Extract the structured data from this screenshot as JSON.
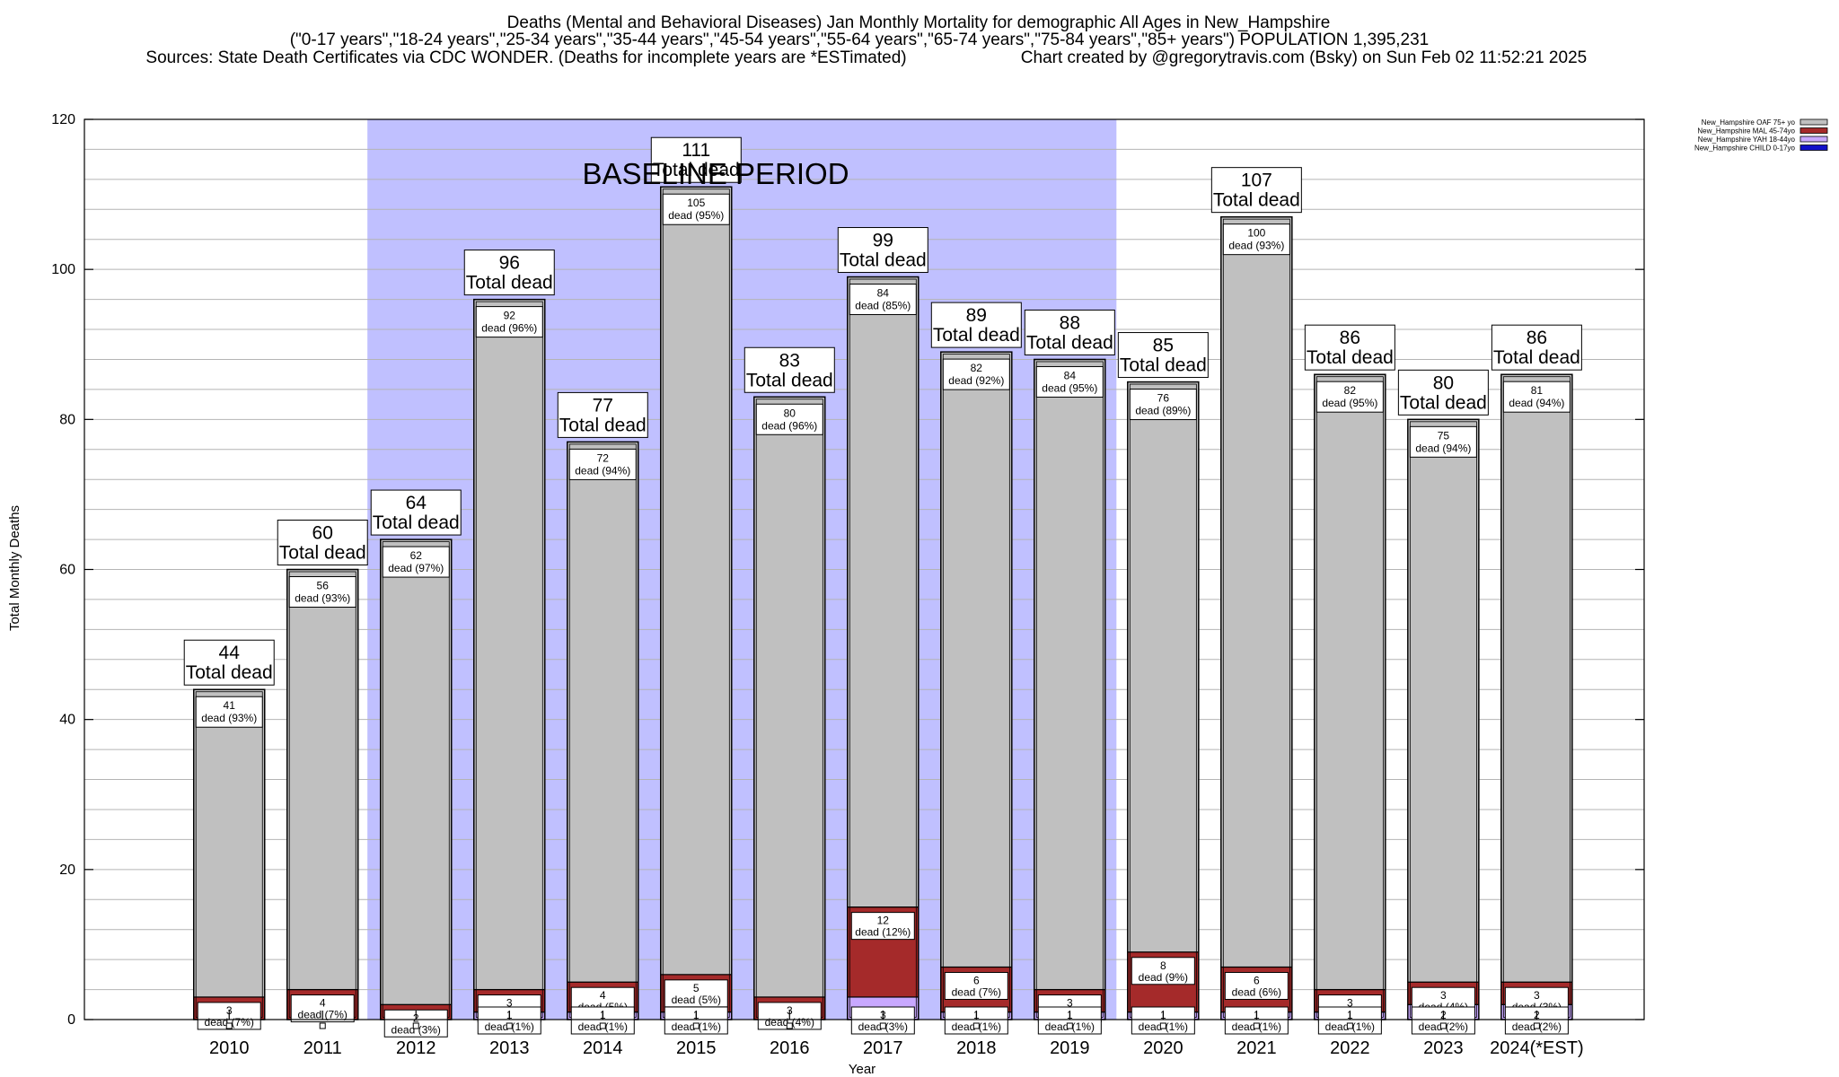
{
  "chart_data": {
    "type": "bar",
    "title_lines": [
      "Deaths (Mental and Behavioral Diseases) Jan Monthly Mortality for demographic All Ages in New_Hampshire",
      "(\"0-17 years\",\"18-24 years\",\"25-34 years\",\"35-44 years\",\"45-54 years\",\"55-64 years\",\"65-74 years\",\"75-84 years\",\"85+ years\") POPULATION 1,395,231",
      "Sources: State Death Certificates via CDC WONDER. (Deaths for incomplete years are *ESTimated)",
      "Chart created by @gregorytravis.com (Bsky) on Sun Feb 02 11:52:21 2025"
    ],
    "xlabel": "Year",
    "ylabel": "Total Monthly Deaths",
    "ylim": [
      0,
      120
    ],
    "yticks": [
      0,
      20,
      40,
      60,
      80,
      100,
      120
    ],
    "baseline_label": "BASELINE PERIOD",
    "baseline_categories": [
      "2012",
      "2019"
    ],
    "total_word": "Total dead",
    "dead_word": "dead",
    "categories": [
      "2010",
      "2011",
      "2012",
      "2013",
      "2014",
      "2015",
      "2016",
      "2017",
      "2018",
      "2019",
      "2020",
      "2021",
      "2022",
      "2023",
      "2024(*EST)"
    ],
    "totals": [
      44,
      60,
      64,
      96,
      77,
      111,
      83,
      99,
      89,
      88,
      85,
      107,
      86,
      80,
      86
    ],
    "series": [
      {
        "name": "New_Hampshire CHILD 0-17yo",
        "color": "#1010c8",
        "values": [
          0,
          0,
          0,
          0,
          0,
          0,
          0,
          0,
          0,
          0,
          0,
          0,
          0,
          0,
          0
        ],
        "labels": [
          "",
          "",
          "",
          "",
          "",
          "",
          "",
          "",
          "",
          "",
          "",
          "",
          "",
          "",
          ""
        ]
      },
      {
        "name": "New_Hampshire YAH 18-44yo",
        "color": "#c8a8ff",
        "values": [
          0,
          0,
          0,
          1,
          1,
          1,
          0,
          3,
          1,
          1,
          1,
          1,
          1,
          2,
          2
        ],
        "labels": [
          "",
          "",
          "",
          "1\ndead (1%)",
          "1\ndead (1%)",
          "1\ndead (1%)",
          "",
          "3\ndead (3%)",
          "1\ndead (1%)",
          "1\ndead (1%)",
          "1\ndead (1%)",
          "1\ndead (1%)",
          "1\ndead (1%)",
          "2\ndead (2%)",
          "2\ndead (2%)"
        ]
      },
      {
        "name": "New_Hampshire MAL 45-74yo",
        "color": "#a52a2a",
        "values": [
          3,
          4,
          2,
          3,
          4,
          5,
          3,
          12,
          6,
          3,
          8,
          6,
          3,
          3,
          3
        ],
        "labels": [
          "3\ndead (7%)",
          "4\ndead (7%)",
          "2\ndead (3%)",
          "3\ndead (3%)",
          "4\ndead (5%)",
          "5\ndead (5%)",
          "3\ndead (4%)",
          "12\ndead (12%)",
          "6\ndead (7%)",
          "3\ndead (3%)",
          "8\ndead (9%)",
          "6\ndead (6%)",
          "3\ndead (3%)",
          "3\ndead (4%)",
          "3\ndead (3%)"
        ]
      },
      {
        "name": "New_Hampshire OAF 75+ yo",
        "color": "#c0c0c0",
        "values": [
          41,
          56,
          62,
          92,
          72,
          105,
          80,
          84,
          82,
          84,
          76,
          100,
          82,
          75,
          81
        ],
        "labels": [
          "41\ndead (93%)",
          "56\ndead (93%)",
          "62\ndead (97%)",
          "92\ndead (96%)",
          "72\ndead (94%)",
          "105\ndead (95%)",
          "80\ndead (96%)",
          "84\ndead (85%)",
          "82\ndead (92%)",
          "84\ndead (95%)",
          "76\ndead (89%)",
          "100\ndead (93%)",
          "82\ndead (95%)",
          "75\ndead (94%)",
          "81\ndead (94%)"
        ]
      }
    ],
    "legend_order": [
      "New_Hampshire OAF 75+ yo",
      "New_Hampshire MAL 45-74yo",
      "New_Hampshire YAH 18-44yo",
      "New_Hampshire CHILD 0-17yo"
    ],
    "legend_placement": "top-right",
    "grid": true,
    "colors": {
      "baseline_shade": "#c0c0ff",
      "grid": "#b4b4b4"
    }
  }
}
